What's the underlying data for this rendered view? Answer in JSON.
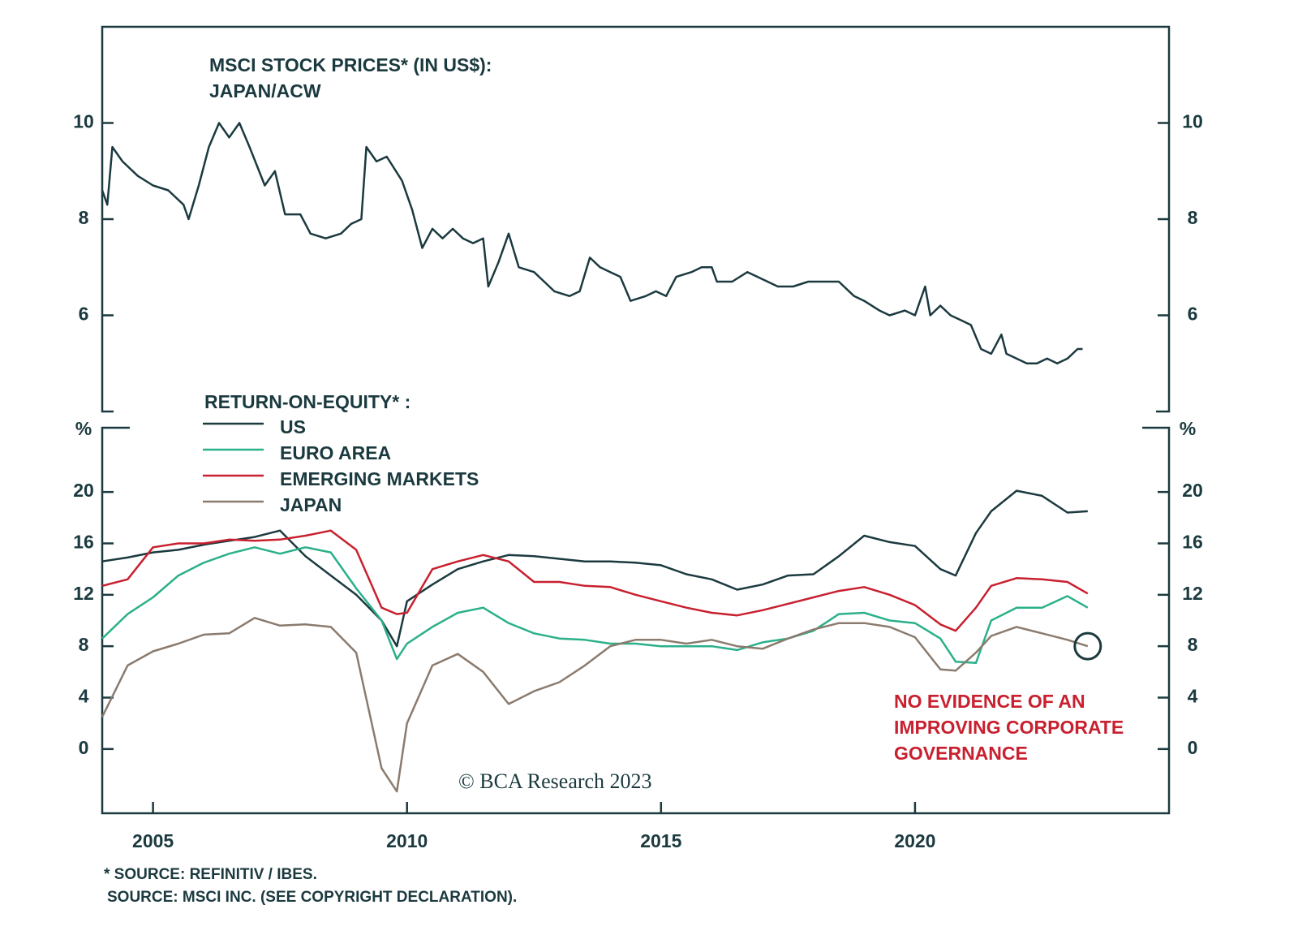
{
  "chart_data": [
    {
      "type": "line",
      "title": [
        "MSCI STOCK PRICES* (IN US$):",
        "JAPAN/ACW"
      ],
      "x": [
        2004.0,
        2004.1,
        2004.2,
        2004.4,
        2004.7,
        2005.0,
        2005.3,
        2005.6,
        2005.7,
        2005.9,
        2006.1,
        2006.3,
        2006.5,
        2006.7,
        2006.9,
        2007.2,
        2007.4,
        2007.6,
        2007.9,
        2008.1,
        2008.4,
        2008.7,
        2008.9,
        2009.1,
        2009.2,
        2009.4,
        2009.6,
        2009.9,
        2010.1,
        2010.3,
        2010.5,
        2010.7,
        2010.9,
        2011.1,
        2011.3,
        2011.5,
        2011.6,
        2011.8,
        2012.0,
        2012.2,
        2012.5,
        2012.7,
        2012.9,
        2013.2,
        2013.4,
        2013.6,
        2013.8,
        2014.0,
        2014.2,
        2014.4,
        2014.7,
        2014.9,
        2015.1,
        2015.3,
        2015.6,
        2015.8,
        2016.0,
        2016.1,
        2016.4,
        2016.7,
        2016.9,
        2017.3,
        2017.6,
        2017.9,
        2018.2,
        2018.5,
        2018.8,
        2019.0,
        2019.3,
        2019.5,
        2019.8,
        2020.0,
        2020.2,
        2020.3,
        2020.5,
        2020.7,
        2020.9,
        2021.1,
        2021.3,
        2021.5,
        2021.7,
        2021.8,
        2022.0,
        2022.2,
        2022.4,
        2022.6,
        2022.8,
        2023.0,
        2023.2,
        2023.3
      ],
      "values": [
        8.6,
        8.3,
        9.5,
        9.2,
        8.9,
        8.7,
        8.6,
        8.3,
        8.0,
        8.7,
        9.5,
        10.0,
        9.7,
        10.0,
        9.5,
        8.7,
        9.0,
        8.1,
        8.1,
        7.7,
        7.6,
        7.7,
        7.9,
        8.0,
        9.5,
        9.2,
        9.3,
        8.8,
        8.2,
        7.4,
        7.8,
        7.6,
        7.8,
        7.6,
        7.5,
        7.6,
        6.6,
        7.1,
        7.7,
        7.0,
        6.9,
        6.7,
        6.5,
        6.4,
        6.5,
        7.2,
        7.0,
        6.9,
        6.8,
        6.3,
        6.4,
        6.5,
        6.4,
        6.8,
        6.9,
        7.0,
        7.0,
        6.7,
        6.7,
        6.9,
        6.8,
        6.6,
        6.6,
        6.7,
        6.7,
        6.7,
        6.4,
        6.3,
        6.1,
        6.0,
        6.1,
        6.0,
        6.6,
        6.0,
        6.2,
        6.0,
        5.9,
        5.8,
        5.3,
        5.2,
        5.6,
        5.2,
        5.1,
        5.0,
        5.0,
        5.1,
        5.0,
        5.1,
        5.3,
        5.3
      ],
      "color": "#1b3a3f",
      "xlim": [
        2004,
        2025
      ],
      "ylim": [
        4,
        12
      ],
      "yticks": [
        6,
        8,
        10
      ]
    },
    {
      "type": "line",
      "legend_title": "RETURN-ON-EQUITY* :",
      "y_unit": "%",
      "x": [
        2004,
        2004.5,
        2005,
        2005.5,
        2006,
        2006.5,
        2007,
        2007.5,
        2008,
        2008.5,
        2009,
        2009.5,
        2009.8,
        2010,
        2010.5,
        2011,
        2011.5,
        2012,
        2012.5,
        2013,
        2013.5,
        2014,
        2014.5,
        2015,
        2015.5,
        2016,
        2016.5,
        2017,
        2017.5,
        2018,
        2018.5,
        2019,
        2019.5,
        2020,
        2020.5,
        2020.8,
        2021.2,
        2021.5,
        2022,
        2022.5,
        2023,
        2023.4
      ],
      "series": [
        {
          "name": "US",
          "color": "#1b3a3f",
          "values": [
            14.6,
            14.9,
            15.3,
            15.5,
            15.9,
            16.2,
            16.5,
            17.0,
            15.0,
            13.5,
            12.0,
            10.0,
            8.0,
            11.5,
            12.8,
            14.0,
            14.6,
            15.1,
            15.0,
            14.8,
            14.6,
            14.6,
            14.5,
            14.3,
            13.6,
            13.2,
            12.4,
            12.8,
            13.5,
            13.6,
            15.0,
            16.6,
            16.1,
            15.8,
            14.0,
            13.5,
            16.8,
            18.5,
            20.1,
            19.7,
            18.4,
            18.5
          ]
        },
        {
          "name": "EURO AREA",
          "color": "#2bb08a",
          "values": [
            8.6,
            10.5,
            11.8,
            13.5,
            14.5,
            15.2,
            15.7,
            15.2,
            15.7,
            15.3,
            12.5,
            10.0,
            7.0,
            8.2,
            9.5,
            10.6,
            11.0,
            9.8,
            9.0,
            8.6,
            8.5,
            8.2,
            8.2,
            8.0,
            8.0,
            8.0,
            7.7,
            8.3,
            8.6,
            9.2,
            10.5,
            10.6,
            10.0,
            9.8,
            8.6,
            6.8,
            6.7,
            10.0,
            11.0,
            11.0,
            11.9,
            11.0
          ]
        },
        {
          "name": "EMERGING MARKETS",
          "color": "#c8202f",
          "values": [
            12.7,
            13.2,
            15.7,
            16.0,
            16.0,
            16.3,
            16.2,
            16.3,
            16.6,
            17.0,
            15.5,
            11.0,
            10.5,
            10.6,
            14.0,
            14.6,
            15.1,
            14.6,
            13.0,
            13.0,
            12.7,
            12.6,
            12.0,
            11.5,
            11.0,
            10.6,
            10.4,
            10.8,
            11.3,
            11.8,
            12.3,
            12.6,
            12.0,
            11.2,
            9.7,
            9.2,
            11.0,
            12.7,
            13.3,
            13.2,
            13.0,
            12.1
          ]
        },
        {
          "name": "JAPAN",
          "color": "#8b7b6e",
          "values": [
            2.5,
            6.5,
            7.6,
            8.2,
            8.9,
            9.0,
            10.2,
            9.6,
            9.7,
            9.5,
            7.5,
            -1.5,
            -3.3,
            2.0,
            6.5,
            7.4,
            6.0,
            3.5,
            4.5,
            5.2,
            6.5,
            8.0,
            8.5,
            8.5,
            8.2,
            8.5,
            8.0,
            7.8,
            8.6,
            9.3,
            9.8,
            9.8,
            9.5,
            8.7,
            6.2,
            6.1,
            7.5,
            8.8,
            9.5,
            9.0,
            8.5,
            8.0
          ]
        }
      ],
      "xlim": [
        2004,
        2025
      ],
      "ylim": [
        -5,
        25
      ],
      "xticks": [
        2005,
        2010,
        2015,
        2020
      ],
      "yticks": [
        0,
        4,
        8,
        12,
        16,
        20
      ],
      "annotation": [
        "NO EVIDENCE OF AN",
        "IMPROVING CORPORATE",
        "GOVERNANCE"
      ],
      "annotation_color": "#c8202f"
    }
  ],
  "watermark": "© BCA Research 2023",
  "source_notes": [
    "* SOURCE: REFINITIV / IBES.",
    "SOURCE: MSCI INC. (SEE COPYRIGHT DECLARATION)."
  ]
}
